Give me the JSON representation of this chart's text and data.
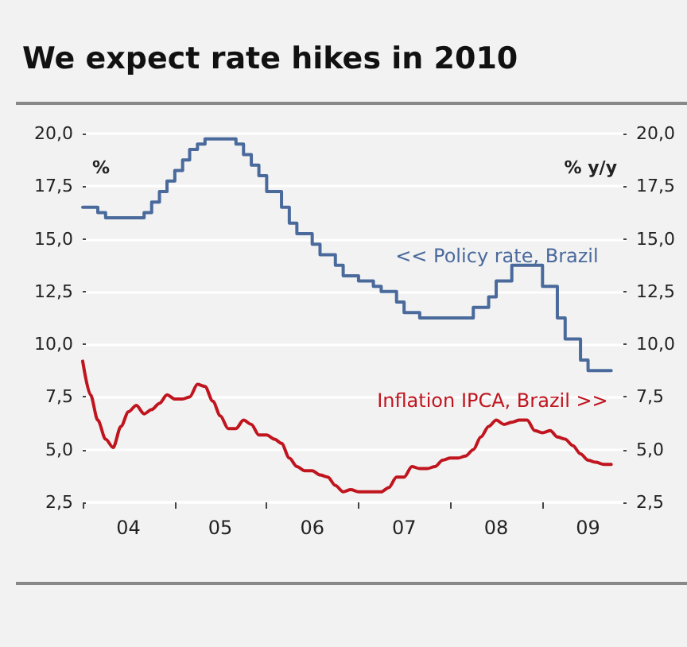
{
  "chart_data": {
    "type": "step",
    "title": "We expect rate hikes in 2010",
    "ylabel": "%",
    "y2label": "% y/y",
    "xlim": [
      "2004-01",
      "2009-12"
    ],
    "xticks": [
      {
        "value": "2004-01",
        "label": null
      },
      {
        "value": "2005-01",
        "label": null
      },
      {
        "value": "2006-01",
        "label": null
      },
      {
        "value": "2007-01",
        "label": null
      },
      {
        "value": "2008-01",
        "label": null
      },
      {
        "value": "2009-01",
        "label": null
      },
      {
        "value": "2004-07",
        "label": "04"
      },
      {
        "value": "2005-07",
        "label": "05"
      },
      {
        "value": "2006-07",
        "label": "06"
      },
      {
        "value": "2007-07",
        "label": "07"
      },
      {
        "value": "2008-07",
        "label": "08"
      },
      {
        "value": "2009-07",
        "label": "09"
      }
    ],
    "ylim": [
      2.5,
      20
    ],
    "yticks": [
      {
        "value": 2.5,
        "label": "2,5"
      },
      {
        "value": 5,
        "label": "5,0"
      },
      {
        "value": 7.5,
        "label": "7,5"
      },
      {
        "value": 10,
        "label": "10,0"
      },
      {
        "value": 12.5,
        "label": "12,5"
      },
      {
        "value": 15,
        "label": "15,0"
      },
      {
        "value": 17.5,
        "label": "17,5"
      },
      {
        "value": 20,
        "label": "20,0"
      }
    ],
    "y2lim": [
      2.5,
      20
    ],
    "y2ticks": [
      {
        "value": 2.5,
        "label": "2,5"
      },
      {
        "value": 5,
        "label": "5,0"
      },
      {
        "value": 7.5,
        "label": "7,5"
      },
      {
        "value": 10,
        "label": "10,0"
      },
      {
        "value": 12.5,
        "label": "12,5"
      },
      {
        "value": 15,
        "label": "15,0"
      },
      {
        "value": 17.5,
        "label": "17,5"
      },
      {
        "value": 20,
        "label": "20,0"
      }
    ],
    "grid": "y",
    "legend": false,
    "marker": "none",
    "series": [
      {
        "name": "<< Policy rate, Brazil",
        "color": "#4a6a9c",
        "x": [
          "2004-01",
          "2004-03",
          "2004-04",
          "2004-09",
          "2004-10",
          "2004-11",
          "2004-12",
          "2005-01",
          "2005-02",
          "2005-03",
          "2005-04",
          "2005-05",
          "2005-09",
          "2005-10",
          "2005-11",
          "2005-12",
          "2006-01",
          "2006-03",
          "2006-04",
          "2006-05",
          "2006-07",
          "2006-08",
          "2006-10",
          "2006-11",
          "2007-01",
          "2007-03",
          "2007-04",
          "2007-06",
          "2007-07",
          "2007-09",
          "2008-04",
          "2008-06",
          "2008-07",
          "2008-09",
          "2009-01",
          "2009-03",
          "2009-04",
          "2009-06",
          "2009-07",
          "2009-10"
        ],
        "values": [
          16.5,
          16.25,
          16.0,
          16.25,
          16.75,
          17.25,
          17.75,
          18.25,
          18.75,
          19.25,
          19.5,
          19.75,
          19.5,
          19.0,
          18.5,
          18.0,
          17.25,
          16.5,
          15.75,
          15.25,
          14.75,
          14.25,
          13.75,
          13.25,
          13.0,
          12.75,
          12.5,
          12.0,
          11.5,
          11.25,
          11.75,
          12.25,
          13.0,
          13.75,
          12.75,
          11.25,
          10.25,
          9.25,
          8.75,
          8.75
        ]
      },
      {
        "name": "Inflation IPCA, Brazil >>",
        "type": "line",
        "color": "#c0141e",
        "x": [
          "2004-01",
          "2004-02",
          "2004-03",
          "2004-04",
          "2004-05",
          "2004-06",
          "2004-07",
          "2004-08",
          "2004-09",
          "2004-10",
          "2004-11",
          "2004-12",
          "2005-01",
          "2005-02",
          "2005-03",
          "2005-04",
          "2005-05",
          "2005-06",
          "2005-07",
          "2005-08",
          "2005-09",
          "2005-10",
          "2005-11",
          "2005-12",
          "2006-01",
          "2006-02",
          "2006-03",
          "2006-04",
          "2006-05",
          "2006-06",
          "2006-07",
          "2006-08",
          "2006-09",
          "2006-10",
          "2006-11",
          "2006-12",
          "2007-01",
          "2007-02",
          "2007-03",
          "2007-04",
          "2007-05",
          "2007-06",
          "2007-07",
          "2007-08",
          "2007-09",
          "2007-10",
          "2007-11",
          "2007-12",
          "2008-01",
          "2008-02",
          "2008-03",
          "2008-04",
          "2008-05",
          "2008-06",
          "2008-07",
          "2008-08",
          "2008-09",
          "2008-10",
          "2008-11",
          "2008-12",
          "2009-01",
          "2009-02",
          "2009-03",
          "2009-04",
          "2009-05",
          "2009-06",
          "2009-07",
          "2009-08",
          "2009-09",
          "2009-10"
        ],
        "values": [
          9.2,
          7.6,
          6.4,
          5.5,
          5.1,
          6.1,
          6.8,
          7.1,
          6.7,
          6.9,
          7.2,
          7.6,
          7.4,
          7.4,
          7.5,
          8.1,
          8.0,
          7.3,
          6.6,
          6.0,
          6.0,
          6.4,
          6.2,
          5.7,
          5.7,
          5.5,
          5.3,
          4.6,
          4.2,
          4.0,
          4.0,
          3.8,
          3.7,
          3.3,
          3.0,
          3.1,
          3.0,
          3.0,
          3.0,
          3.0,
          3.2,
          3.7,
          3.7,
          4.2,
          4.1,
          4.1,
          4.2,
          4.5,
          4.6,
          4.6,
          4.7,
          5.0,
          5.6,
          6.1,
          6.4,
          6.2,
          6.3,
          6.4,
          6.4,
          5.9,
          5.8,
          5.9,
          5.6,
          5.5,
          5.2,
          4.8,
          4.5,
          4.4,
          4.3,
          4.3
        ]
      }
    ]
  }
}
